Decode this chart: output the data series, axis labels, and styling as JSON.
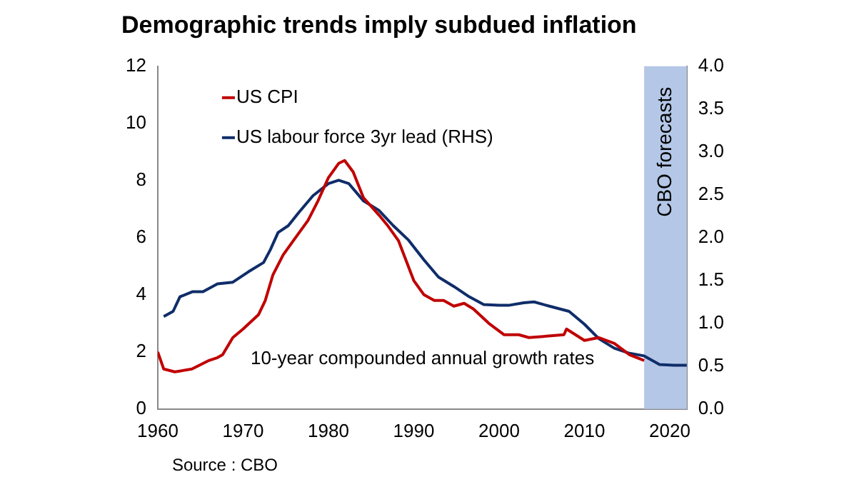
{
  "chart_data": {
    "type": "line",
    "title": "Demographic trends imply subdued inflation",
    "x": [
      1960,
      1960.7,
      1962,
      1964,
      1966,
      1967,
      1967.6,
      1968.8,
      1970,
      1971.8,
      1972.6,
      1973.5,
      1974.7,
      1975.9,
      1977.6,
      1978.8,
      1980,
      1981.2,
      1981.9,
      1982.9,
      1984.1,
      1985.9,
      1987,
      1988.2,
      1989.1,
      1990,
      1991.2,
      1992.4,
      1993.5,
      1994.7,
      1995.9,
      1997,
      1998.8,
      2000.6,
      2002.3,
      2003.5,
      2007.6,
      2007.9,
      2010,
      2011.7,
      2013.5,
      2015.3,
      2017
    ],
    "series": [
      {
        "name": "US CPI",
        "color": "#c00000",
        "values": [
          2.0,
          1.4,
          1.3,
          1.4,
          1.7,
          1.8,
          1.9,
          2.5,
          2.8,
          3.3,
          3.8,
          4.7,
          5.4,
          5.9,
          6.6,
          7.3,
          8.1,
          8.6,
          8.7,
          8.3,
          7.4,
          6.8,
          6.4,
          5.9,
          5.2,
          4.5,
          4.0,
          3.8,
          3.8,
          3.6,
          3.7,
          3.5,
          3.0,
          2.6,
          2.6,
          2.5,
          2.6,
          2.8,
          2.4,
          2.5,
          2.3,
          1.9,
          1.7
        ]
      },
      {
        "name": "US labour force 3yr lead (RHS)",
        "color": "#0f2d69",
        "axis": "y2",
        "x": [
          1960.7,
          1961.8,
          1962.6,
          1964.1,
          1965.3,
          1967,
          1968.8,
          1970.6,
          1972.4,
          1973.2,
          1974.1,
          1975.3,
          1976.5,
          1978.2,
          1980,
          1981.2,
          1982.4,
          1984.1,
          1985.9,
          1987.6,
          1989.4,
          1991.2,
          1992.9,
          1994.7,
          1996.5,
          1998.2,
          2000,
          2001.1,
          2002.9,
          2004.1,
          2005.9,
          2008.2,
          2010,
          2011.7,
          2013.5,
          2015.3,
          2017,
          2018.8,
          2020.5,
          2022
        ],
        "values": [
          1.08,
          1.14,
          1.31,
          1.37,
          1.37,
          1.46,
          1.48,
          1.6,
          1.71,
          1.86,
          2.06,
          2.14,
          2.29,
          2.49,
          2.63,
          2.67,
          2.63,
          2.43,
          2.32,
          2.14,
          1.97,
          1.74,
          1.54,
          1.43,
          1.31,
          1.22,
          1.21,
          1.21,
          1.24,
          1.25,
          1.2,
          1.14,
          0.99,
          0.82,
          0.71,
          0.65,
          0.62,
          0.52,
          0.51,
          0.51
        ]
      }
    ],
    "xlim": [
      1960,
      2022
    ],
    "xticks": [
      1960,
      1970,
      1980,
      1990,
      2000,
      2010,
      2020
    ],
    "ylim": [
      0,
      12
    ],
    "yticks": [
      0,
      2,
      4,
      6,
      8,
      10,
      12
    ],
    "y2lim": [
      0,
      4
    ],
    "y2ticks": [
      {
        "value": 0,
        "label": "0.0"
      },
      {
        "value": 0.5,
        "label": "0.5"
      },
      {
        "value": 1,
        "label": "1.0"
      },
      {
        "value": 1.5,
        "label": "1.5"
      },
      {
        "value": 2,
        "label": "2.0"
      },
      {
        "value": 2.5,
        "label": "2.5"
      },
      {
        "value": 3,
        "label": "3.0"
      },
      {
        "value": 3.5,
        "label": "3.5"
      },
      {
        "value": 4,
        "label": "4.0"
      }
    ],
    "bands": [
      {
        "axis": "x",
        "from": 2017,
        "to": 2022,
        "label": "CBO forecasts",
        "color": "#b4c7e7"
      }
    ],
    "annotations": [
      "10-year compounded annual growth rates",
      "Source : CBO"
    ],
    "legend": "top left",
    "grid": false,
    "marker": "none",
    "line_style": "solid"
  }
}
